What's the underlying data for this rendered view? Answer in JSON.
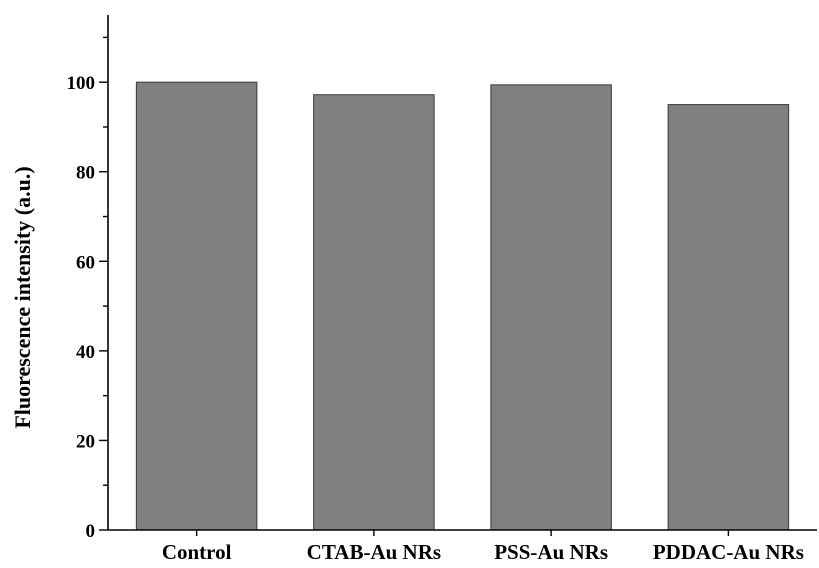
{
  "chart_data": {
    "type": "bar",
    "title": "",
    "xlabel": "",
    "ylabel": "Fluorescence intensity (a.u.)",
    "categories": [
      "Control",
      "CTAB-Au NRs",
      "PSS-Au NRs",
      "PDDAC-Au NRs"
    ],
    "values": [
      100,
      97.2,
      99.4,
      95.0
    ],
    "ylim": [
      0,
      115
    ],
    "yticks": [
      0,
      20,
      40,
      60,
      80,
      100
    ],
    "yminor_step": 10,
    "grid": false,
    "legend": "none",
    "colors": {
      "bar": "#808080",
      "bar_edge": "#3a3a3a",
      "axis": "#000000"
    }
  }
}
